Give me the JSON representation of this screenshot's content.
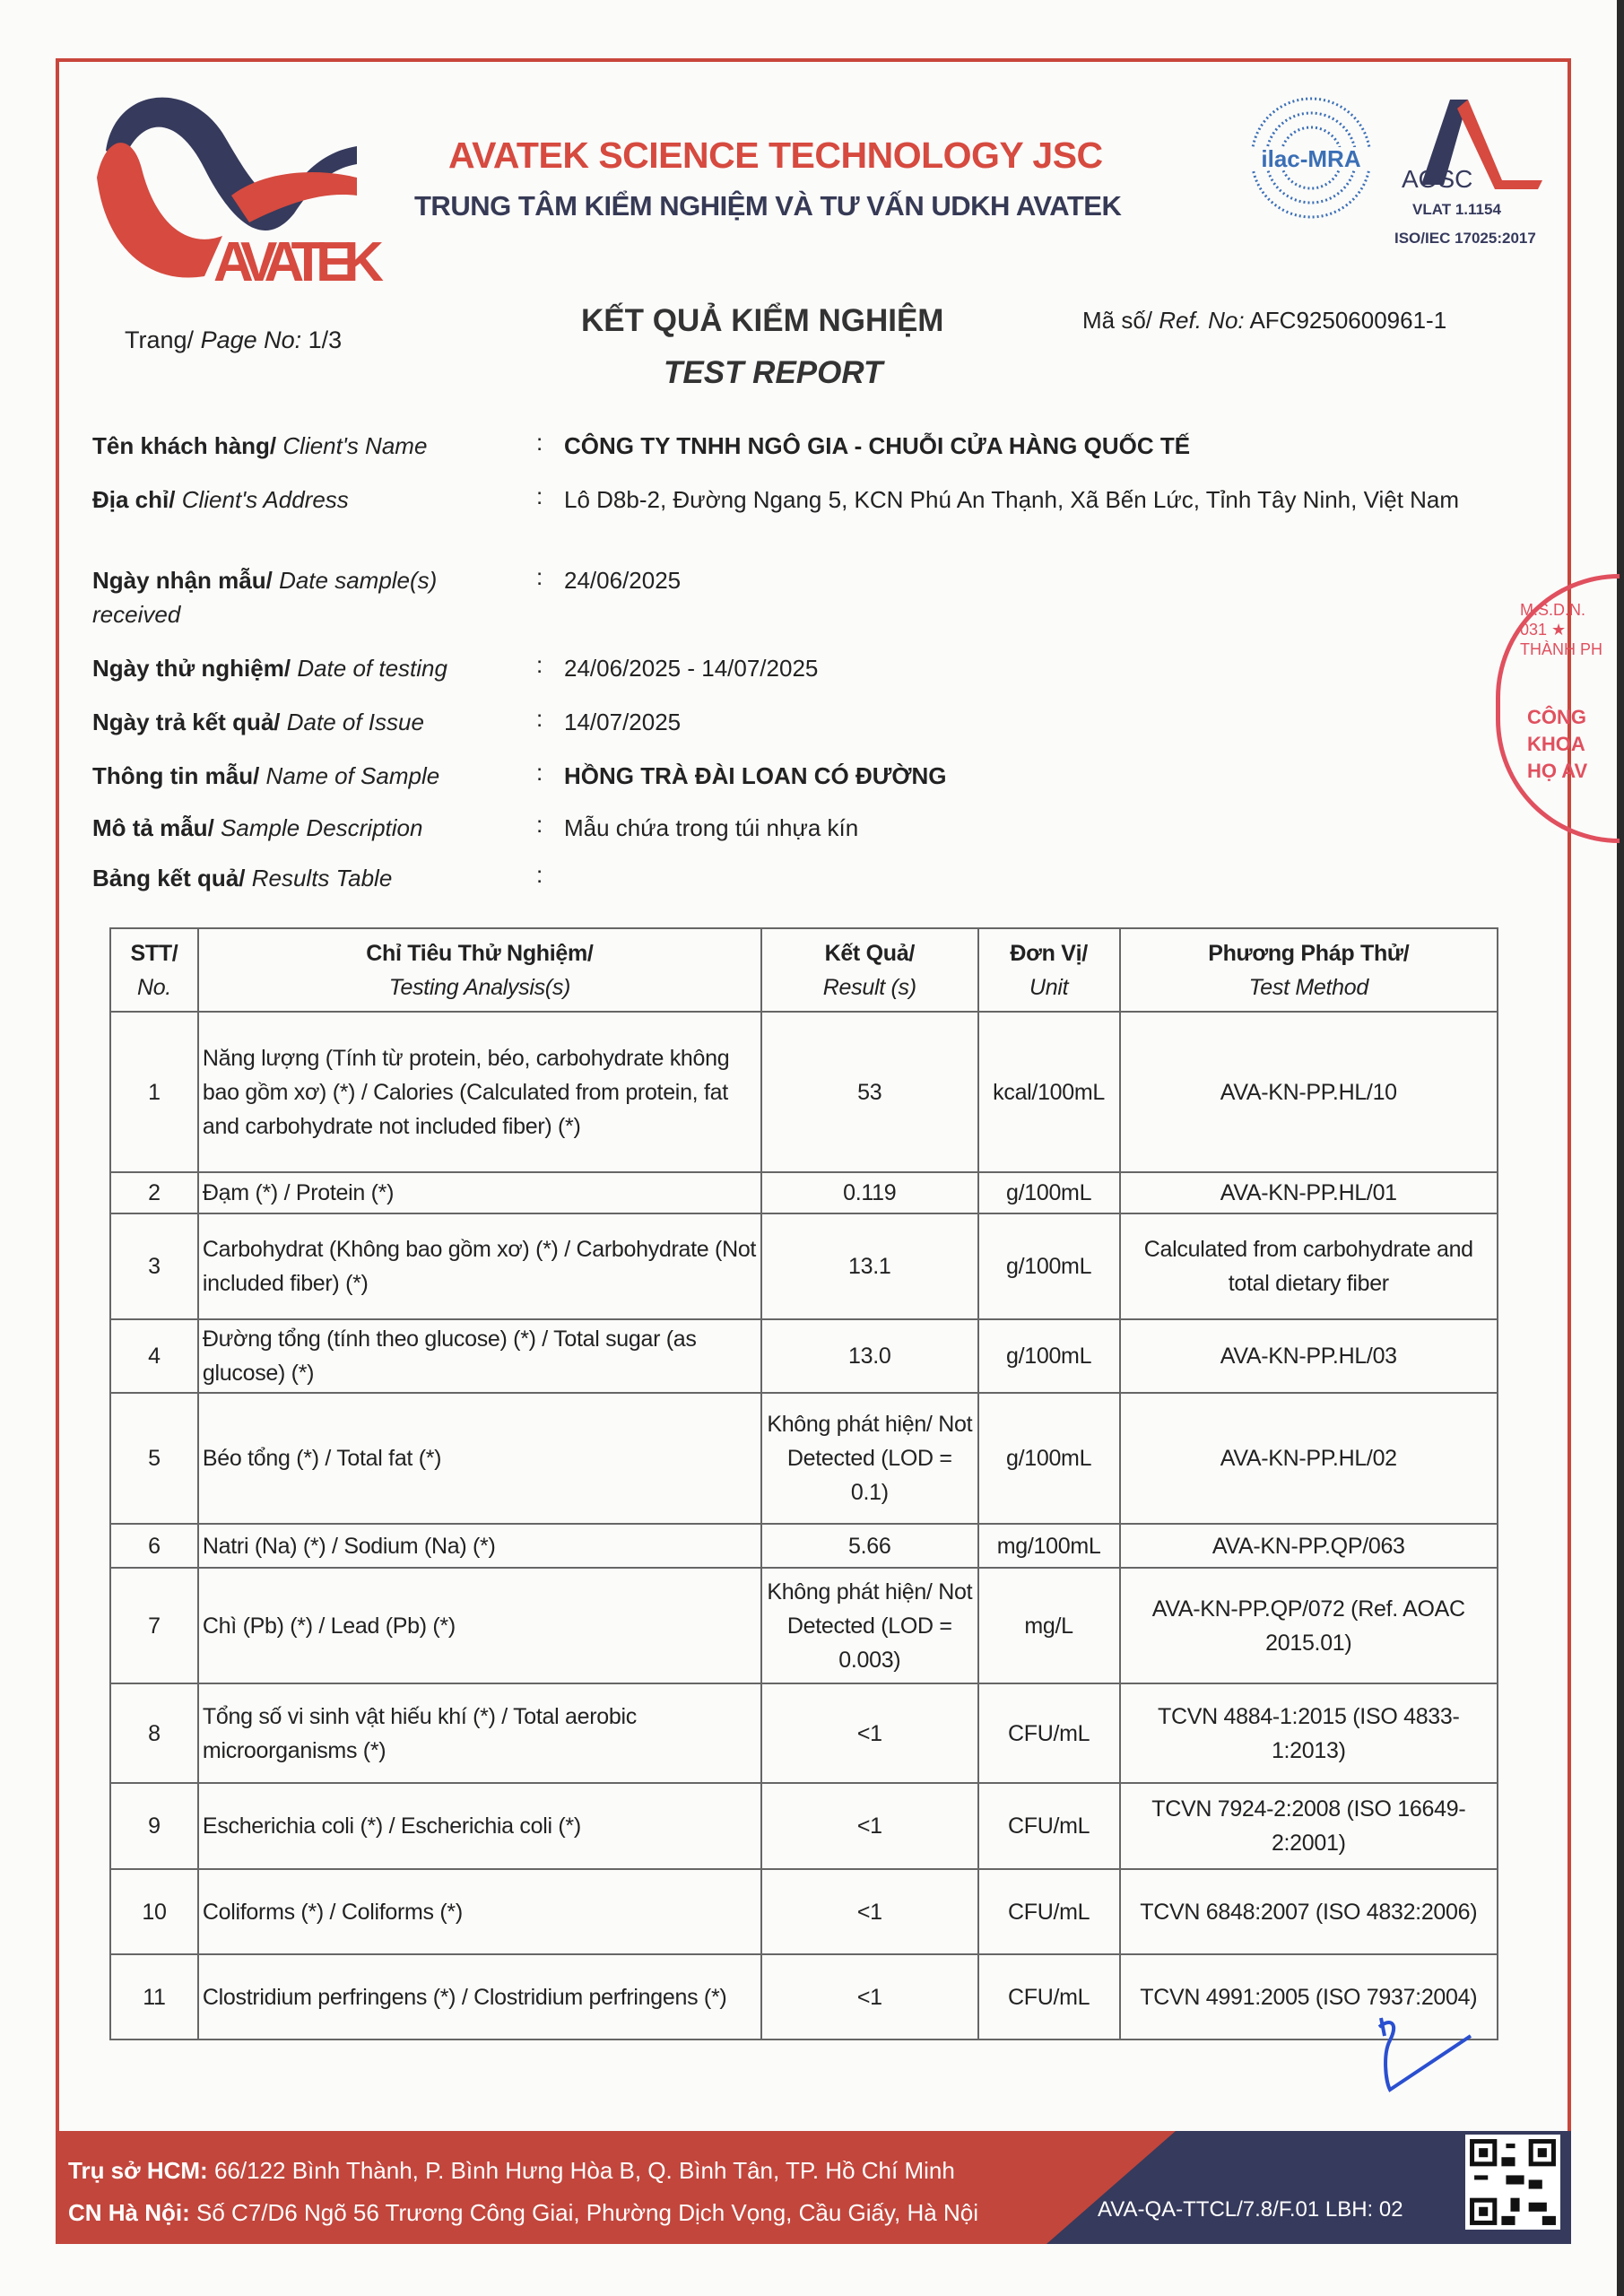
{
  "header": {
    "logo_text": "AVATEK",
    "company": "AVATEK SCIENCE TECHNOLOGY JSC",
    "center": "TRUNG TÂM KIỂM NGHIỆM VÀ TƯ VẤN UDKH AVATEK",
    "ilac_text": "ilac-MRA",
    "aosc_text": "AOSC",
    "vlat": "VLAT 1.1154",
    "iso": "ISO/IEC 17025:2017",
    "colors": {
      "red": "#d64a3f",
      "navy": "#363a5c"
    }
  },
  "report": {
    "page_label_vi": "Trang/",
    "page_label_en": "Page No:",
    "page_value": "1/3",
    "title_vi": "KẾT QUẢ KIỂM NGHIỆM",
    "title_en": "TEST REPORT",
    "ref_label_vi": "Mã số/",
    "ref_label_en": "Ref. No:",
    "ref_value": "AFC9250600961-1"
  },
  "fields": [
    {
      "vi": "Tên khách hàng/",
      "en": "Client's Name",
      "value": "CÔNG TY TNHH NGÔ GIA - CHUỖI CỬA HÀNG QUỐC TẾ"
    },
    {
      "vi": "Địa chỉ/",
      "en": "Client's Address",
      "value": "Lô D8b-2, Đường Ngang 5, KCN Phú An Thạnh, Xã  Bến Lức, Tỉnh Tây Ninh, Việt Nam"
    },
    {
      "vi": "Ngày nhận mẫu/",
      "en": "Date sample(s) received",
      "value": "24/06/2025"
    },
    {
      "vi": "Ngày thử nghiệm/",
      "en": "Date of testing",
      "value": "24/06/2025 - 14/07/2025"
    },
    {
      "vi": "Ngày trả kết quả/",
      "en": "Date of Issue",
      "value": "14/07/2025"
    },
    {
      "vi": "Thông tin mẫu/",
      "en": "Name of Sample",
      "value": "HỒNG TRÀ ĐÀI LOAN CÓ ĐƯỜNG"
    },
    {
      "vi": "Mô tả mẫu/",
      "en": "Sample Description",
      "value": "Mẫu chứa trong túi nhựa kín"
    },
    {
      "vi": "Bảng kết quả/",
      "en": "Results Table",
      "value": ""
    }
  ],
  "table": {
    "columns": [
      {
        "vi": "STT/",
        "en": "No."
      },
      {
        "vi": "Chỉ Tiêu Thử Nghiệm/",
        "en": "Testing Analysis(s)"
      },
      {
        "vi": "Kết Quả/",
        "en": "Result (s)"
      },
      {
        "vi": "Đơn Vị/",
        "en": "Unit"
      },
      {
        "vi": "Phương Pháp Thử/",
        "en": "Test Method"
      }
    ],
    "rows": [
      {
        "no": "1",
        "analysis": "Năng lượng (Tính từ protein, béo, carbohydrate không bao gồm xơ) (*) / Calories (Calculated from protein, fat and carbohydrate not included fiber) (*)",
        "result": "53",
        "unit": "kcal/100mL",
        "method": "AVA-KN-PP.HL/10"
      },
      {
        "no": "2",
        "analysis": "Đạm (*) / Protein (*)",
        "result": "0.119",
        "unit": "g/100mL",
        "method": "AVA-KN-PP.HL/01"
      },
      {
        "no": "3",
        "analysis": "Carbohydrat (Không bao gồm xơ) (*) / Carbohydrate (Not included fiber) (*)",
        "result": "13.1",
        "unit": "g/100mL",
        "method": "Calculated from carbohydrate and total dietary fiber"
      },
      {
        "no": "4",
        "analysis": "Đường tổng (tính theo glucose) (*) / Total sugar (as glucose) (*)",
        "result": "13.0",
        "unit": "g/100mL",
        "method": "AVA-KN-PP.HL/03"
      },
      {
        "no": "5",
        "analysis": "Béo tổng (*) / Total fat (*)",
        "result": "Không phát hiện/ Not Detected (LOD = 0.1)",
        "unit": "g/100mL",
        "method": "AVA-KN-PP.HL/02"
      },
      {
        "no": "6",
        "analysis": "Natri (Na) (*) / Sodium (Na) (*)",
        "result": "5.66",
        "unit": "mg/100mL",
        "method": "AVA-KN-PP.QP/063"
      },
      {
        "no": "7",
        "analysis": "Chì (Pb) (*) / Lead (Pb) (*)",
        "result": "Không phát hiện/ Not Detected (LOD = 0.003)",
        "unit": "mg/L",
        "method": "AVA-KN-PP.QP/072 (Ref. AOAC 2015.01)"
      },
      {
        "no": "8",
        "analysis": "Tổng số vi sinh vật hiếu khí (*) / Total aerobic microorganisms (*)",
        "result": "<1",
        "unit": "CFU/mL",
        "method": "TCVN 4884-1:2015 (ISO 4833-1:2013)"
      },
      {
        "no": "9",
        "analysis": "Escherichia coli (*) / Escherichia coli (*)",
        "result": "<1",
        "unit": "CFU/mL",
        "method": "TCVN 7924-2:2008 (ISO 16649-2:2001)"
      },
      {
        "no": "10",
        "analysis": "Coliforms (*) / Coliforms (*)",
        "result": "<1",
        "unit": "CFU/mL",
        "method": "TCVN 6848:2007 (ISO 4832:2006)"
      },
      {
        "no": "11",
        "analysis": "Clostridium perfringens (*) / Clostridium perfringens (*)",
        "result": "<1",
        "unit": "CFU/mL",
        "method": "TCVN 4991:2005 (ISO 7937:2004)"
      }
    ]
  },
  "stamp": {
    "text_outer": "M.S.D.N. 031 ★ THÀNH PH",
    "text_inner": "CÔNG KHOA HỌ AV"
  },
  "footer": {
    "hcm_label": "Trụ sở HCM:",
    "hcm_address": "66/122 Bình Thành, P. Bình Hưng Hòa B, Q. Bình Tân, TP. Hồ Chí Minh",
    "hn_label": "CN Hà Nội:",
    "hn_address": "Số C7/D6 Ngõ 56 Trương Công Giai, Phường Dịch Vọng, Cầu Giấy, Hà Nội",
    "form_code": "AVA-QA-TTCL/7.8/F.01 LBH: 02"
  }
}
